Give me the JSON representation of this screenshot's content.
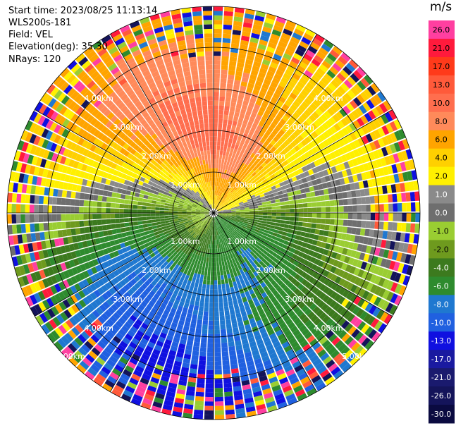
{
  "header": {
    "start_time": "Start time: 2023/08/25 11:13:14",
    "instrument": "WLS200s-181",
    "field": "Field: VEL",
    "elevation": "Elevation(deg): 35.30",
    "nrays": "NRays: 120"
  },
  "colorbar": {
    "unit": "m/s",
    "bands": [
      {
        "label": "26.0",
        "color": "#ff3fa0"
      },
      {
        "label": "21.0",
        "color": "#ff1a3c"
      },
      {
        "label": "17.0",
        "color": "#ff3a1a"
      },
      {
        "label": "13.0",
        "color": "#ff5a3a"
      },
      {
        "label": "10.0",
        "color": "#ff6e4e"
      },
      {
        "label": "8.0",
        "color": "#ff8a5a"
      },
      {
        "label": "6.0",
        "color": "#ffa400"
      },
      {
        "label": "4.0",
        "color": "#ffd000"
      },
      {
        "label": "2.0",
        "color": "#fff000"
      },
      {
        "label": "1.0",
        "color": "#8a8a8a"
      },
      {
        "label": "0.0",
        "color": "#6e6e6e"
      },
      {
        "label": "-1.0",
        "color": "#9acd32"
      },
      {
        "label": "-2.0",
        "color": "#6e9a1e"
      },
      {
        "label": "-4.0",
        "color": "#3c7a1e"
      },
      {
        "label": "-6.0",
        "color": "#2e8b2e"
      },
      {
        "label": "-8.0",
        "color": "#1f78d0"
      },
      {
        "label": "-10.0",
        "color": "#2060e0"
      },
      {
        "label": "-13.0",
        "color": "#1010e0"
      },
      {
        "label": "-17.0",
        "color": "#1a1aa0"
      },
      {
        "label": "-21.0",
        "color": "#1a1a6e"
      },
      {
        "label": "-26.0",
        "color": "#14145a"
      },
      {
        "label": "-30.0",
        "color": "#0a0a40"
      }
    ]
  },
  "chart_data": {
    "type": "heatmap",
    "field": "VEL",
    "rays": 120,
    "range_rings": [
      {
        "label": "1.00km"
      },
      {
        "label": "2.00km"
      },
      {
        "label": "3.00km"
      },
      {
        "label": "4.00km"
      },
      {
        "label": "5.00km"
      }
    ]
  }
}
